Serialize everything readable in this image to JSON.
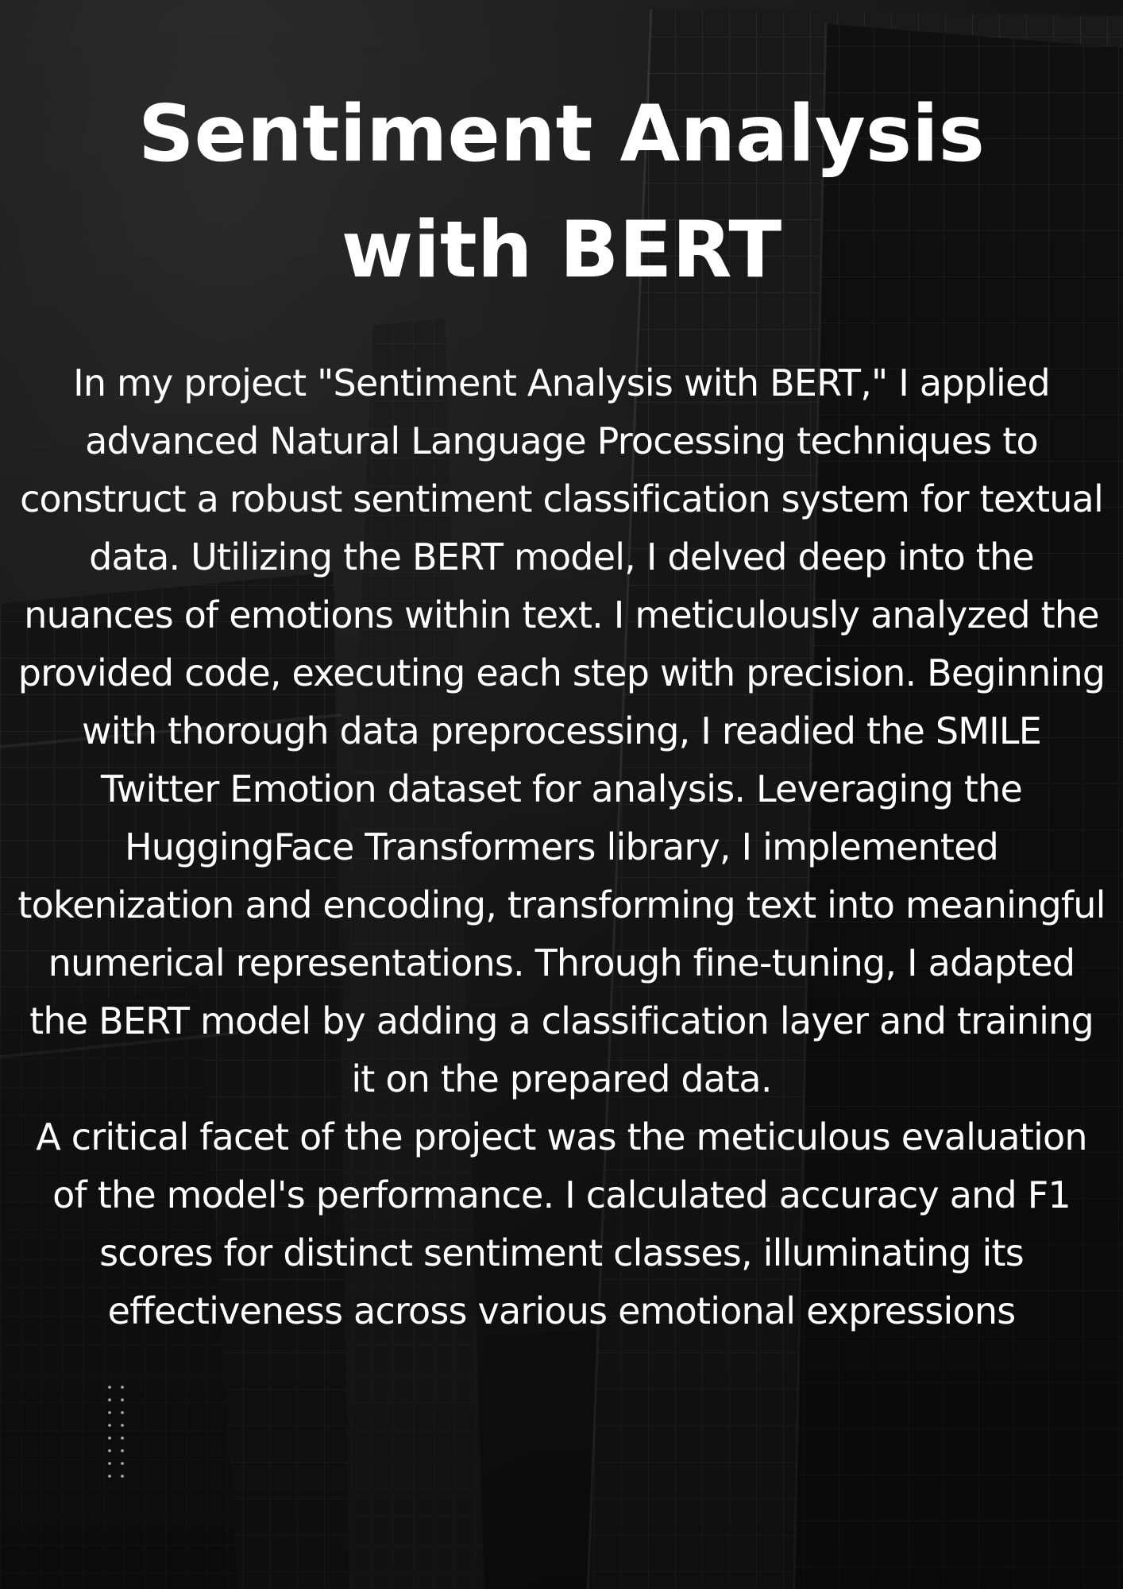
{
  "title": "Sentiment Analysis with BERT",
  "paragraphs": [
    "In my project \"Sentiment Analysis with BERT,\" I applied advanced Natural Language Processing techniques to construct a robust sentiment classification system for textual data. Utilizing the BERT model, I delved deep into the nuances of emotions within text. I meticulously analyzed the provided code, executing each step with precision. Beginning with thorough data preprocessing, I readied the SMILE Twitter Emotion dataset for analysis. Leveraging the HuggingFace Transformers library, I implemented tokenization and encoding, transforming text into meaningful numerical representations. Through fine-tuning, I adapted the BERT model by adding a classification layer and training it on the prepared data.",
    "A critical facet of the project was the meticulous evaluation of the model's performance. I calculated accuracy and F1 scores for distinct sentiment classes, illuminating its effectiveness across various emotional expressions"
  ],
  "colors": {
    "text": "#ffffff",
    "background": "#141414"
  }
}
